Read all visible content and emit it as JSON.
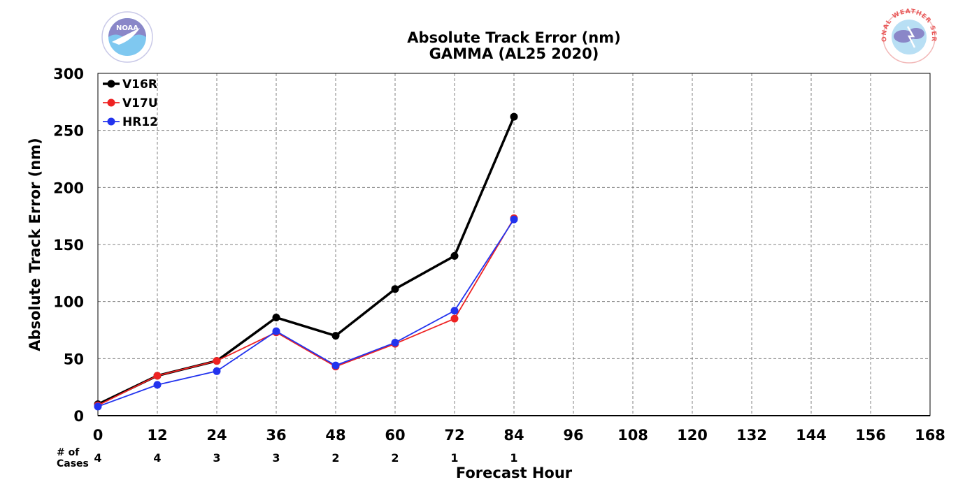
{
  "chart_data": {
    "type": "line",
    "title": "Absolute Track Error (nm)",
    "subtitle": "GAMMA (AL25 2020)",
    "xlabel": "Forecast Hour",
    "ylabel": "Absolute Track Error (nm)",
    "xlim": [
      0,
      168
    ],
    "ylim": [
      0,
      300
    ],
    "x_ticks": [
      "0",
      "12",
      "24",
      "36",
      "48",
      "60",
      "72",
      "84",
      "96",
      "108",
      "120",
      "132",
      "144",
      "156",
      "168"
    ],
    "y_ticks": [
      "0",
      "50",
      "100",
      "150",
      "200",
      "250",
      "300"
    ],
    "grid": true,
    "legend_position": "top-left",
    "x": [
      0,
      12,
      24,
      36,
      48,
      60,
      72,
      84
    ],
    "series": [
      {
        "name": "V16R",
        "color": "#000000",
        "values": [
          10,
          35,
          48,
          86,
          70,
          111,
          140,
          262
        ]
      },
      {
        "name": "V17U",
        "color": "#ee2222",
        "values": [
          9,
          35,
          48,
          73,
          43,
          63,
          85,
          173
        ]
      },
      {
        "name": "HR12",
        "color": "#2233ee",
        "values": [
          8,
          27,
          39,
          74,
          44,
          64,
          92,
          172
        ]
      }
    ],
    "cases": {
      "label_line1": "# of",
      "label_line2": "Cases",
      "values": [
        "4",
        "4",
        "3",
        "3",
        "2",
        "2",
        "1",
        "1"
      ]
    }
  },
  "logos": {
    "left": {
      "icon": "noaa-logo-icon",
      "text": "NOAA"
    },
    "right": {
      "icon": "nws-logo-icon",
      "text": "NATIONAL WEATHER SERVICE"
    }
  }
}
